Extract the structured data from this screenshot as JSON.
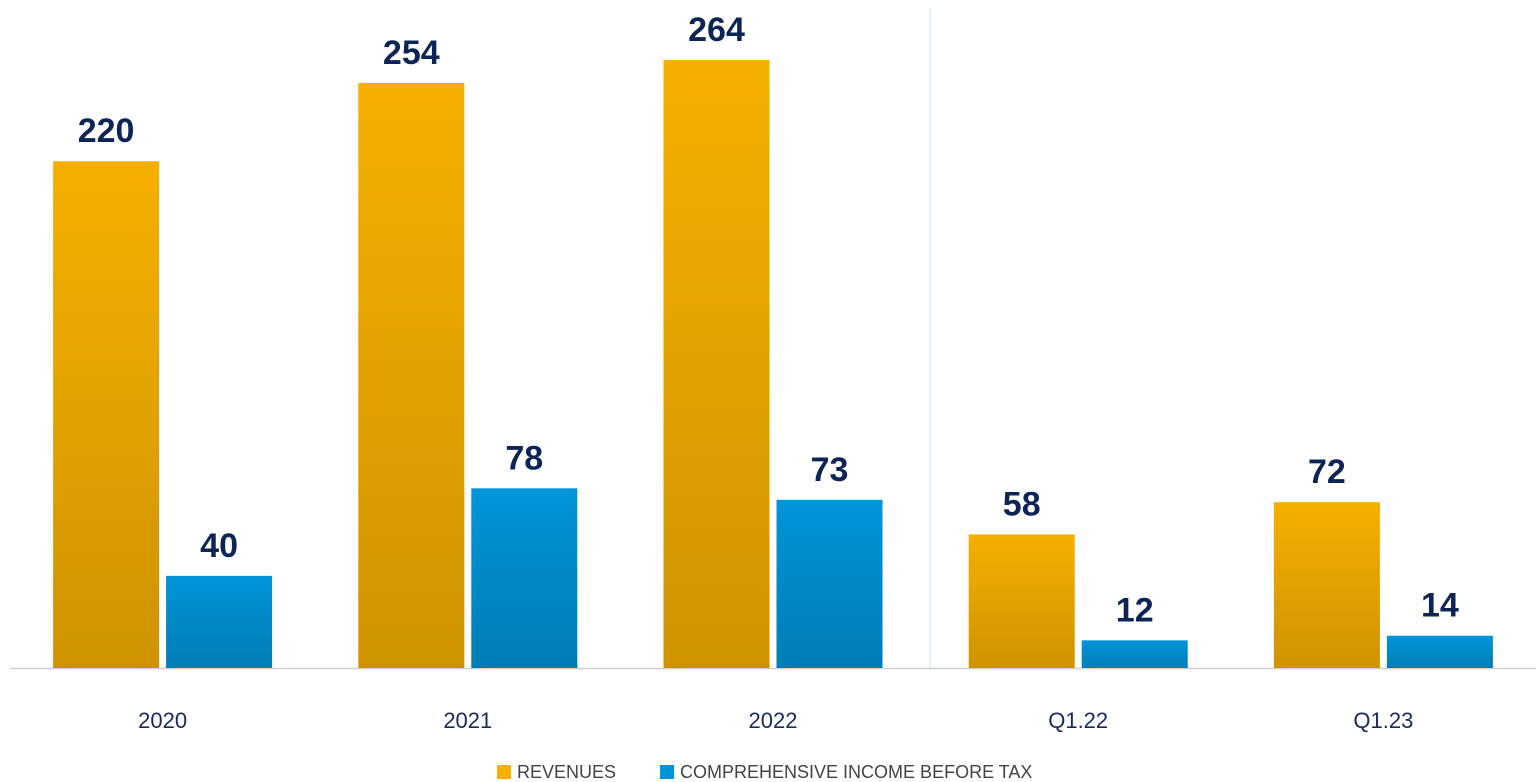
{
  "chart_data": {
    "type": "bar",
    "categories": [
      "2020",
      "2021",
      "2022",
      "Q1.22",
      "Q1.23"
    ],
    "series": [
      {
        "name": "REVENUES",
        "color": "#f5b000",
        "values": [
          220,
          254,
          264,
          58,
          72
        ]
      },
      {
        "name": "COMPREHENSIVE INCOME BEFORE TAX",
        "color": "#0095d9",
        "values": [
          40,
          78,
          73,
          12,
          14
        ]
      }
    ],
    "ylim": [
      0,
      290
    ]
  }
}
